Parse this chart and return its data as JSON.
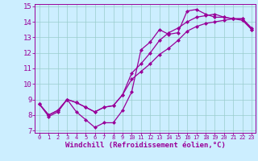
{
  "background_color": "#cceeff",
  "line_color": "#990099",
  "grid_color": "#99cccc",
  "xlim": [
    -0.5,
    23.4
  ],
  "ylim": [
    6.85,
    15.15
  ],
  "xticks": [
    0,
    1,
    2,
    3,
    4,
    5,
    6,
    7,
    8,
    9,
    10,
    11,
    12,
    13,
    14,
    15,
    16,
    17,
    18,
    19,
    20,
    21,
    22,
    23
  ],
  "yticks": [
    7,
    8,
    9,
    10,
    11,
    12,
    13,
    14,
    15
  ],
  "line1_x": [
    0,
    1,
    2,
    3,
    4,
    5,
    6,
    7,
    8,
    9,
    10,
    11,
    12,
    13,
    14,
    15,
    16,
    17,
    18,
    19,
    20,
    21,
    22,
    23
  ],
  "line1_y": [
    8.7,
    7.9,
    8.2,
    9.0,
    8.2,
    7.7,
    7.2,
    7.5,
    7.5,
    8.3,
    9.5,
    12.2,
    12.7,
    13.5,
    13.2,
    13.3,
    14.7,
    14.8,
    14.5,
    14.3,
    14.3,
    14.2,
    14.2,
    13.5
  ],
  "line2_x": [
    0,
    1,
    2,
    3,
    4,
    5,
    6,
    7,
    8,
    9,
    10,
    11,
    12,
    13,
    14,
    15,
    16,
    17,
    18,
    19,
    20,
    21,
    22,
    23
  ],
  "line2_y": [
    8.7,
    8.0,
    8.3,
    9.0,
    8.8,
    8.5,
    8.2,
    8.5,
    8.6,
    9.3,
    10.3,
    10.8,
    11.3,
    11.9,
    12.3,
    12.8,
    13.4,
    13.7,
    13.9,
    14.0,
    14.1,
    14.2,
    14.2,
    13.6
  ],
  "line3_x": [
    0,
    1,
    2,
    3,
    4,
    5,
    6,
    7,
    8,
    9,
    10,
    11,
    12,
    13,
    14,
    15,
    16,
    17,
    18,
    19,
    20,
    21,
    22,
    23
  ],
  "line3_y": [
    8.7,
    8.0,
    8.3,
    9.0,
    8.8,
    8.5,
    8.2,
    8.5,
    8.6,
    9.3,
    10.7,
    11.3,
    12.0,
    12.8,
    13.3,
    13.6,
    14.0,
    14.3,
    14.4,
    14.5,
    14.3,
    14.2,
    14.1,
    13.5
  ],
  "marker": "D",
  "markersize": 2.0,
  "linewidth": 0.9,
  "xlabel": "Windchill (Refroidissement éolien,°C)",
  "xlabel_fontsize": 6.5,
  "xtick_fontsize": 5.0,
  "ytick_fontsize": 6.5
}
